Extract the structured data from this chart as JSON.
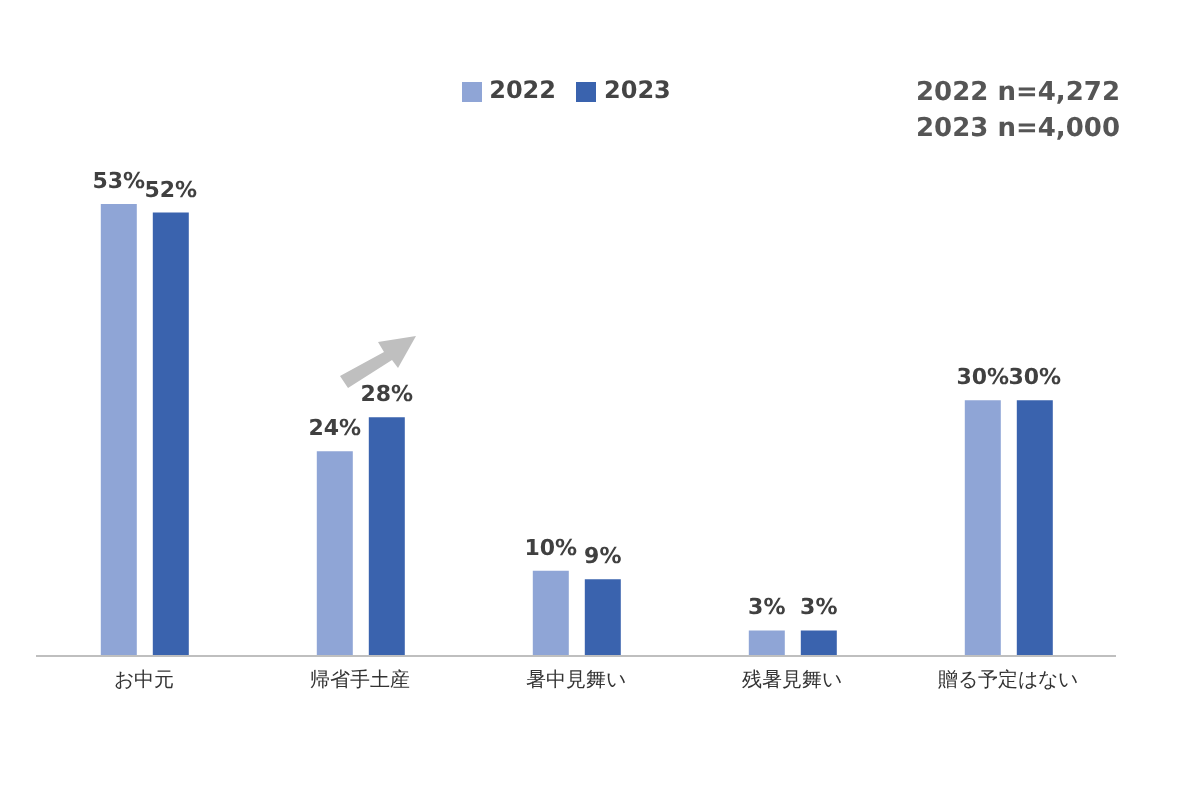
{
  "chart_data": {
    "type": "bar",
    "categories": [
      "お中元",
      "帰省手土産",
      "暑中見舞い",
      "残暑見舞い",
      "贈る予定はない"
    ],
    "series": [
      {
        "name": "2022",
        "color": "#8fa5d6",
        "values": [
          53,
          24,
          10,
          3,
          30
        ],
        "value_labels": [
          "53%",
          "24%",
          "10%",
          "3%",
          "30%"
        ]
      },
      {
        "name": "2023",
        "color": "#3a63ae",
        "values": [
          52,
          28,
          9,
          3,
          30
        ],
        "value_labels": [
          "52%",
          "28%",
          "9%",
          "3%",
          "30%"
        ]
      }
    ],
    "tick_labels": "x",
    "legend": "top",
    "annotations": [
      "2022 n=4,272",
      "2023 n=4,000"
    ]
  }
}
